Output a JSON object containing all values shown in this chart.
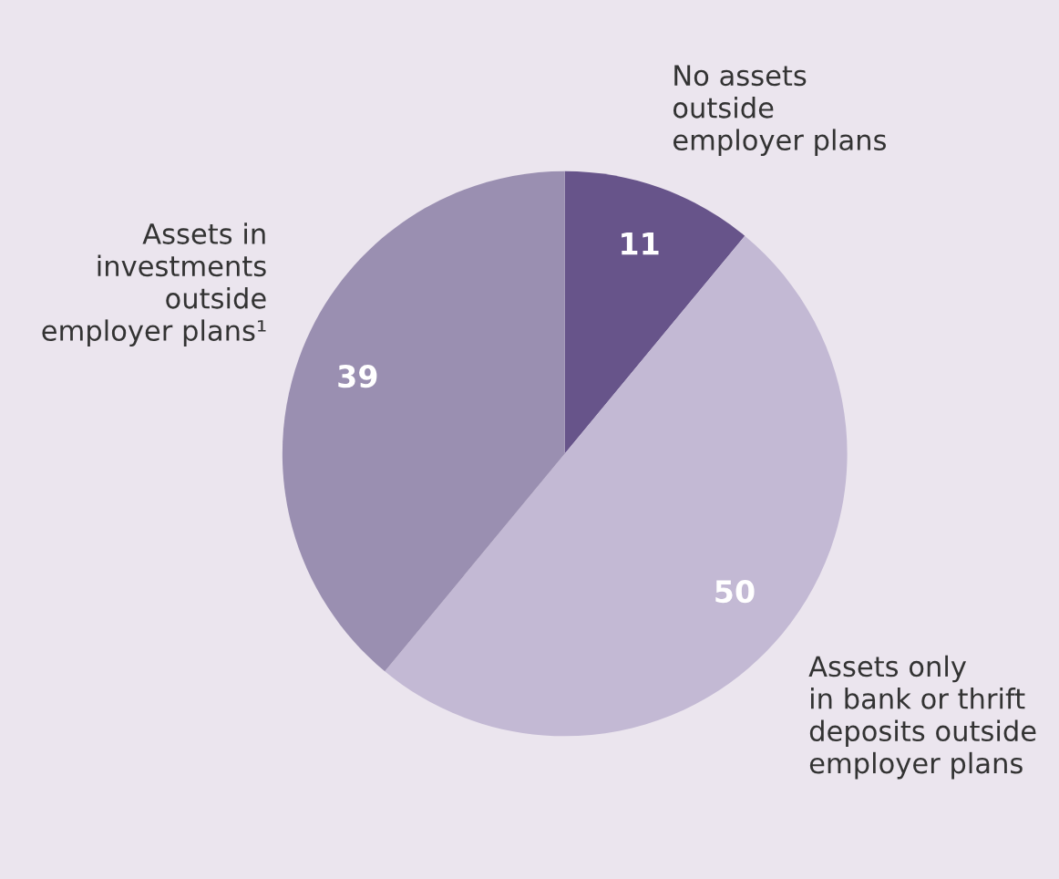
{
  "chart_data": {
    "type": "pie",
    "categories": [
      "No assets\noutside\nemployer plans",
      "Assets only\nin bank or thrift\ndeposits outside\nemployer plans",
      "Assets in\ninvestments\noutside\nemployer plans¹"
    ],
    "values": [
      11,
      50,
      39
    ],
    "colors": [
      "#67548a",
      "#c3b9d4",
      "#9a8fb1"
    ],
    "data_labels": true
  }
}
